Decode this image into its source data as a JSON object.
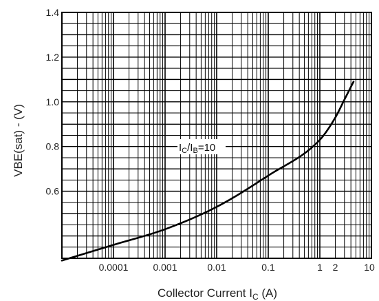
{
  "chart_data": {
    "type": "line",
    "x_scale": "log",
    "y_scale": "linear",
    "xlim": [
      1e-05,
      10
    ],
    "ylim": [
      0.3,
      1.4
    ],
    "grid": true,
    "xlabel": {
      "main": "Collector Current  I",
      "sub": "C",
      "tail": " (A)"
    },
    "ylabel": "VBE(sat) - (V)",
    "x_ticks": [
      {
        "value": 0.0001,
        "label": "0.0001"
      },
      {
        "value": 0.001,
        "label": "0.001"
      },
      {
        "value": 0.01,
        "label": "0.01"
      },
      {
        "value": 0.1,
        "label": "0.1"
      },
      {
        "value": 1,
        "label": "1"
      },
      {
        "value": 2,
        "label": "2"
      },
      {
        "value": 10,
        "label": "10"
      }
    ],
    "y_ticks": [
      {
        "value": 0.6,
        "label": "0.6"
      },
      {
        "value": 0.8,
        "label": "0.8"
      },
      {
        "value": 1.0,
        "label": "1.0"
      },
      {
        "value": 1.2,
        "label": "1.2"
      },
      {
        "value": 1.4,
        "label": "1.4"
      }
    ],
    "annotation": "IC/IB=10",
    "series": [
      {
        "x": [
          1e-05,
          0.0001,
          0.001,
          0.01,
          0.1,
          1,
          2,
          3,
          4.5
        ],
        "y": [
          0.29,
          0.36,
          0.43,
          0.53,
          0.67,
          0.83,
          0.93,
          1.01,
          1.09
        ]
      }
    ]
  },
  "colors": {
    "grid": "#000000",
    "line": "#000000",
    "background": "#ffffff"
  }
}
